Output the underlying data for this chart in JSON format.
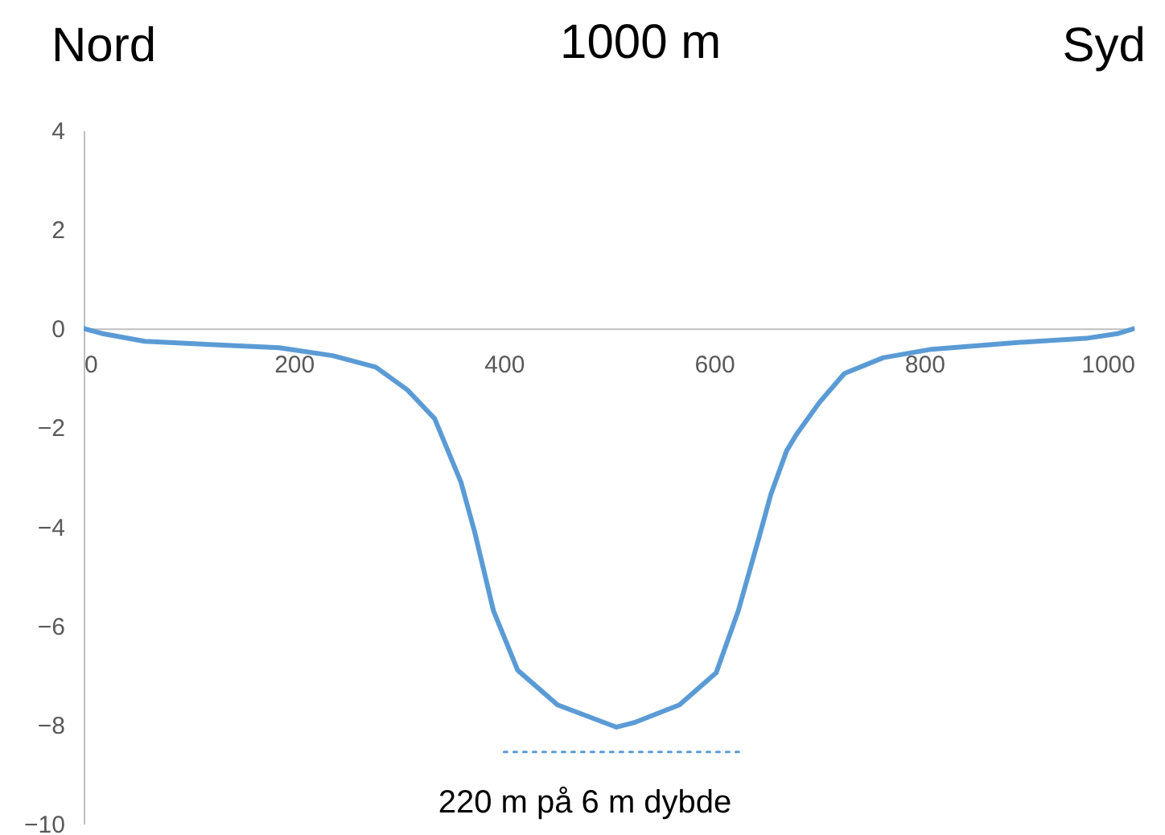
{
  "chart_data": {
    "type": "line",
    "title": "1000 m",
    "annotations": [
      "Nord",
      "Syd",
      "220 m på 6 m dybde"
    ],
    "x": [
      0,
      17,
      58,
      124,
      186,
      237,
      278,
      308,
      334,
      359,
      372,
      390,
      413,
      451,
      507,
      525,
      567,
      602,
      623,
      643,
      654,
      669,
      678,
      700,
      724,
      761,
      807,
      884,
      954,
      985,
      1000
    ],
    "series": [
      {
        "color": "#5b9bd5",
        "values": [
          0,
          -0.1,
          -0.26,
          -0.33,
          -0.39,
          -0.55,
          -0.78,
          -1.24,
          -1.82,
          -3.1,
          -4.1,
          -5.7,
          -6.9,
          -7.6,
          -8.05,
          -7.95,
          -7.6,
          -6.95,
          -5.7,
          -4.2,
          -3.35,
          -2.47,
          -2.15,
          -1.5,
          -0.91,
          -0.59,
          -0.42,
          -0.29,
          -0.2,
          -0.1,
          0
        ]
      },
      {
        "type": "line",
        "line_style": "dotted",
        "color": "#5b9bd5",
        "x": [
          400,
          628
        ],
        "values": [
          -8.55,
          -8.55
        ]
      }
    ],
    "line_style": "solid",
    "xlim": [
      0,
      1000
    ],
    "xticks": [
      0,
      200,
      400,
      600,
      800,
      1000
    ],
    "ylim": [
      -10,
      4
    ],
    "yticks": [
      4,
      2,
      0,
      -2,
      -4,
      -6,
      -8,
      -10
    ]
  }
}
